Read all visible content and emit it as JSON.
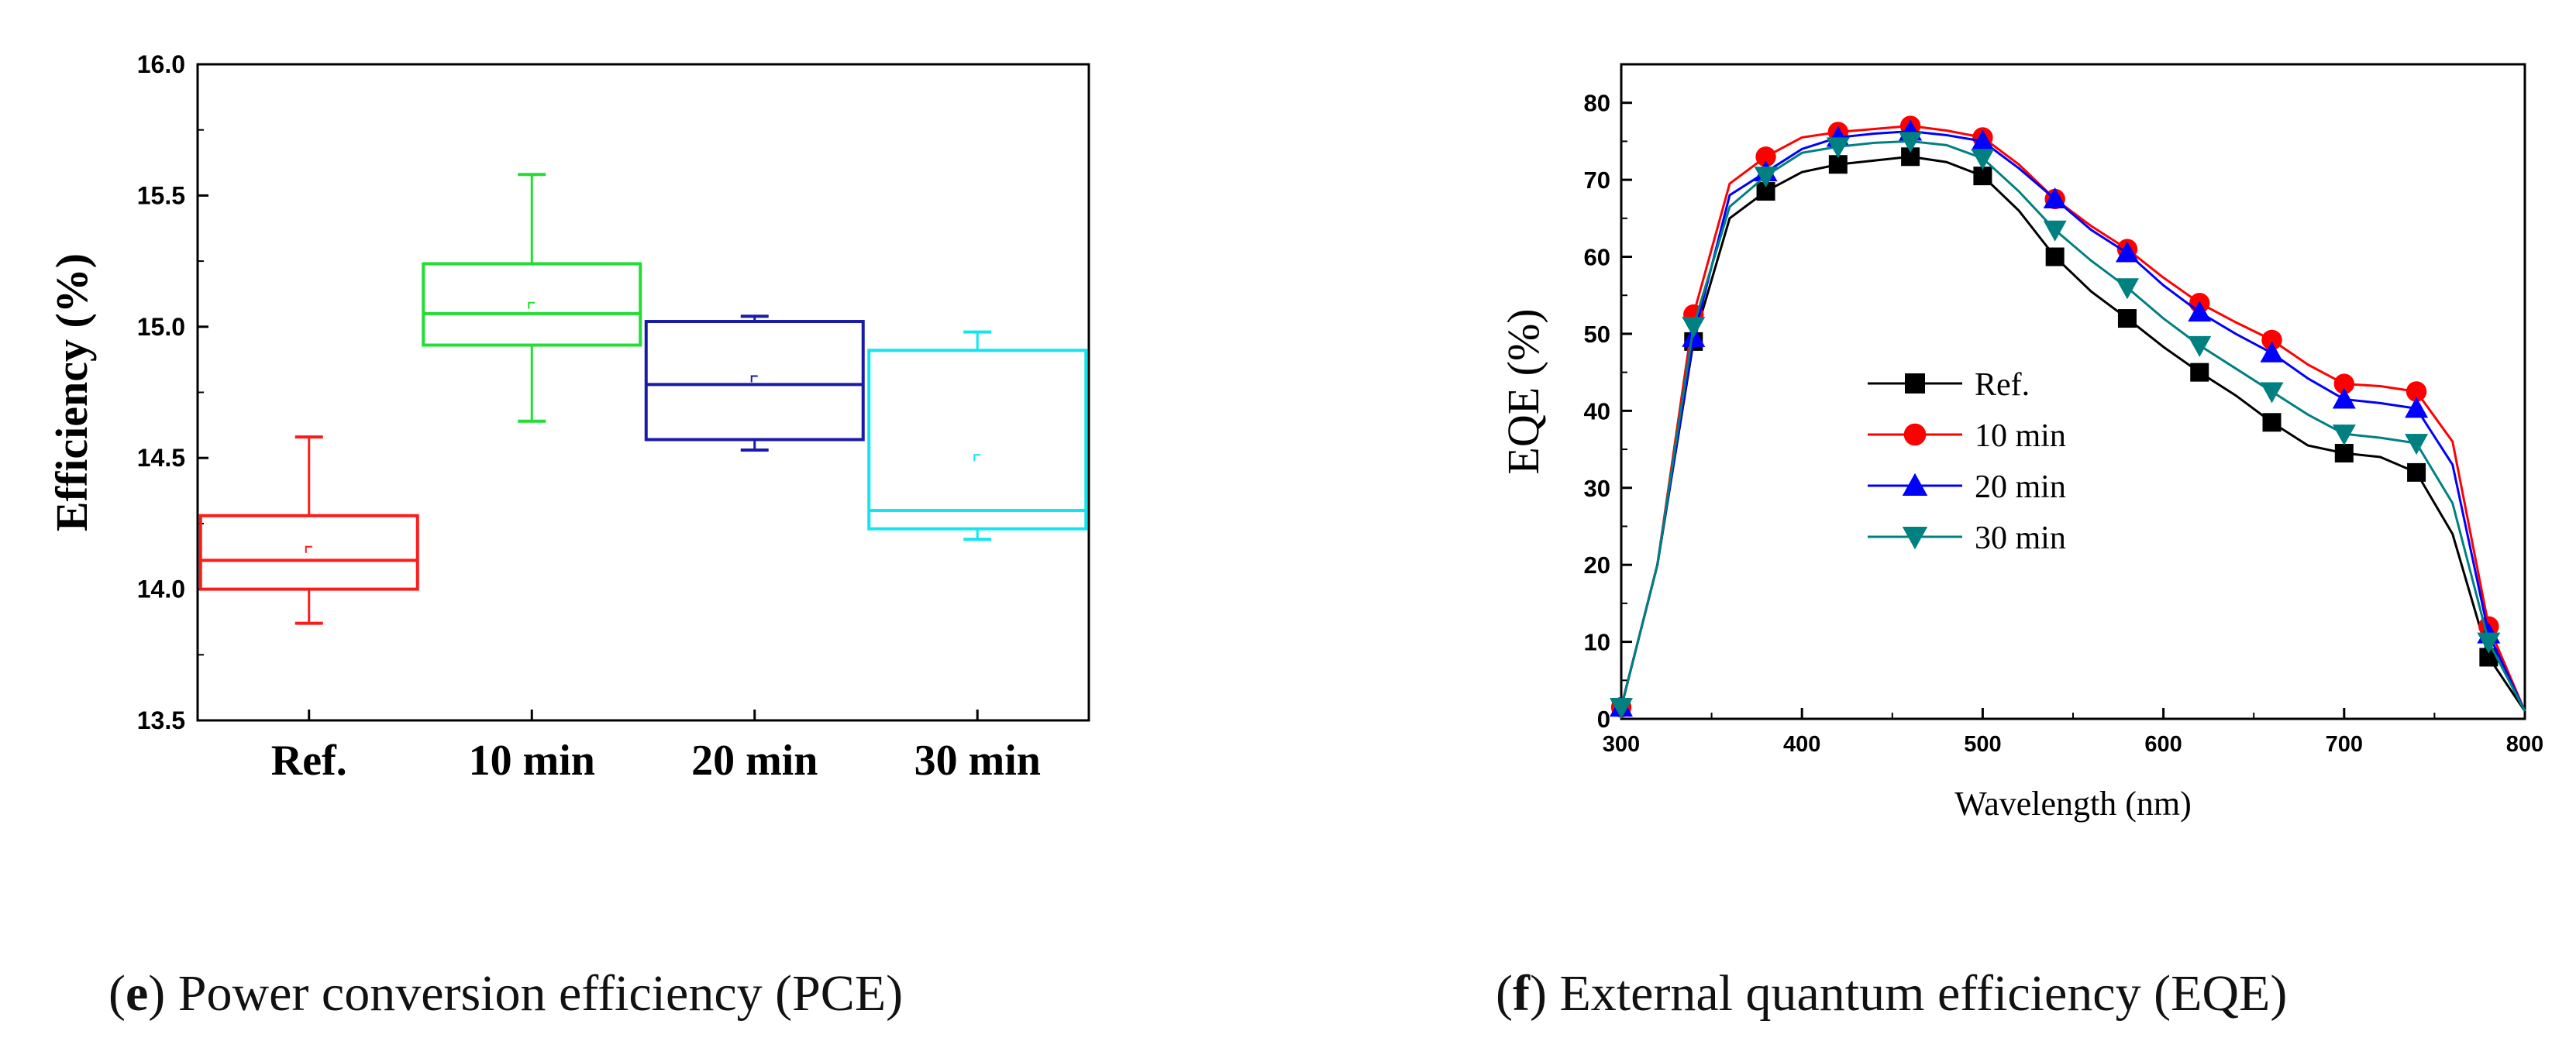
{
  "chart_data": [
    {
      "type": "box",
      "panel": "e",
      "title": "",
      "xlabel": "",
      "ylabel": "Efficiency (%)",
      "ylim": [
        13.5,
        16.0
      ],
      "yticks": [
        "13.5",
        "14.0",
        "14.5",
        "15.0",
        "15.5",
        "16.0"
      ],
      "categories": [
        "Ref.",
        "10 min",
        "20 min",
        "30 min"
      ],
      "colors": [
        "#ff1a1a",
        "#22dd33",
        "#1a1aaa",
        "#11e6f0"
      ],
      "boxes": [
        {
          "name": "Ref.",
          "whisker_low": 13.87,
          "q1": 14.0,
          "median": 14.11,
          "mean": 14.15,
          "q3": 14.28,
          "whisker_high": 14.58
        },
        {
          "name": "10 min",
          "whisker_low": 14.64,
          "q1": 14.93,
          "median": 15.05,
          "mean": 15.08,
          "q3": 15.24,
          "whisker_high": 15.58
        },
        {
          "name": "20 min",
          "whisker_low": 14.53,
          "q1": 14.57,
          "median": 14.78,
          "mean": 14.8,
          "q3": 15.02,
          "whisker_high": 15.04
        },
        {
          "name": "30 min",
          "whisker_low": 14.19,
          "q1": 14.23,
          "median": 14.3,
          "mean": 14.5,
          "q3": 14.91,
          "whisker_high": 14.98
        }
      ]
    },
    {
      "type": "line",
      "panel": "f",
      "title": "",
      "xlabel": "Wavelength (nm)",
      "ylabel": "EQE (%)",
      "xlim": [
        300,
        800
      ],
      "ylim": [
        0,
        85
      ],
      "xticks": [
        "300",
        "400",
        "500",
        "600",
        "700",
        "800"
      ],
      "yticks": [
        "0",
        "10",
        "20",
        "30",
        "40",
        "50",
        "60",
        "70",
        "80"
      ],
      "legend_position": "center-left",
      "series": [
        {
          "name": "Ref.",
          "color": "#000000",
          "marker": "square",
          "x": [
            300,
            320,
            340,
            360,
            380,
            400,
            420,
            440,
            460,
            480,
            500,
            520,
            540,
            560,
            580,
            600,
            620,
            640,
            660,
            680,
            700,
            720,
            740,
            760,
            780,
            800
          ],
          "y": [
            1.5,
            20,
            49,
            65,
            68.5,
            71,
            72,
            72.5,
            73,
            72.3,
            70.5,
            66,
            60,
            55.5,
            52,
            48.3,
            45,
            42,
            38.5,
            35.5,
            34.5,
            34,
            32,
            24,
            8,
            1
          ],
          "marker_x": [
            300,
            340,
            380,
            420,
            460,
            500,
            540,
            580,
            620,
            660,
            700,
            740,
            780
          ],
          "marker_y": [
            1.5,
            49,
            68.5,
            72,
            73,
            70.5,
            60,
            52,
            45,
            38.5,
            34.5,
            32,
            8
          ]
        },
        {
          "name": "10 min",
          "color": "#ff0000",
          "marker": "circle",
          "x": [
            300,
            320,
            340,
            360,
            380,
            400,
            420,
            440,
            460,
            480,
            500,
            520,
            540,
            560,
            580,
            600,
            620,
            640,
            660,
            680,
            700,
            720,
            740,
            760,
            780,
            800
          ],
          "y": [
            1.5,
            20,
            52.5,
            69.5,
            73,
            75.5,
            76.2,
            76.6,
            77,
            76.4,
            75.5,
            72,
            67.5,
            64,
            61,
            57.3,
            54,
            51.5,
            49.2,
            46,
            43.5,
            43.2,
            42.5,
            36,
            12,
            1
          ],
          "marker_x": [
            300,
            340,
            380,
            420,
            460,
            500,
            540,
            580,
            620,
            660,
            700,
            740,
            780
          ],
          "marker_y": [
            1.5,
            52.5,
            73,
            76.2,
            77,
            75.5,
            67.5,
            61,
            54,
            49.2,
            43.5,
            42.5,
            12
          ]
        },
        {
          "name": "20 min",
          "color": "#0000ff",
          "marker": "triangle-up",
          "x": [
            300,
            320,
            340,
            360,
            380,
            400,
            420,
            440,
            460,
            480,
            500,
            520,
            540,
            560,
            580,
            600,
            620,
            640,
            660,
            680,
            700,
            720,
            740,
            760,
            780,
            800
          ],
          "y": [
            1.5,
            20,
            49.5,
            68,
            71,
            74,
            75.5,
            76,
            76.3,
            75.8,
            75,
            71.5,
            67.5,
            63.5,
            60.5,
            56.3,
            52.8,
            50,
            47.5,
            44.2,
            41.5,
            41,
            40.3,
            33,
            11,
            1
          ],
          "marker_x": [
            300,
            340,
            380,
            420,
            460,
            500,
            540,
            580,
            620,
            660,
            700,
            740,
            780
          ],
          "marker_y": [
            1.5,
            49.5,
            71,
            75.5,
            76.3,
            75,
            67.5,
            60.5,
            52.8,
            47.5,
            41.5,
            40.3,
            11
          ]
        },
        {
          "name": "30 min",
          "color": "#008080",
          "marker": "triangle-down",
          "x": [
            300,
            320,
            340,
            360,
            380,
            400,
            420,
            440,
            460,
            480,
            500,
            520,
            540,
            560,
            580,
            600,
            620,
            640,
            660,
            680,
            700,
            720,
            740,
            760,
            780,
            800
          ],
          "y": [
            1.5,
            20,
            51,
            66.5,
            70.5,
            73.5,
            74.3,
            74.8,
            75,
            74.5,
            72.8,
            68.5,
            63.5,
            59.5,
            56,
            52,
            48.5,
            45.5,
            42.5,
            39.5,
            37,
            36.5,
            35.8,
            28,
            10,
            1
          ],
          "marker_x": [
            300,
            340,
            380,
            420,
            460,
            500,
            540,
            580,
            620,
            660,
            700,
            740,
            780
          ],
          "marker_y": [
            1.5,
            51,
            70.5,
            74.3,
            75,
            72.8,
            63.5,
            56,
            48.5,
            42.5,
            37,
            35.8,
            10
          ]
        }
      ]
    }
  ],
  "captions": {
    "e_letter": "e",
    "e_text": "Power conversion efficiency (PCE)",
    "f_letter": "f",
    "f_text": "External quantum efficiency (EQE)"
  }
}
